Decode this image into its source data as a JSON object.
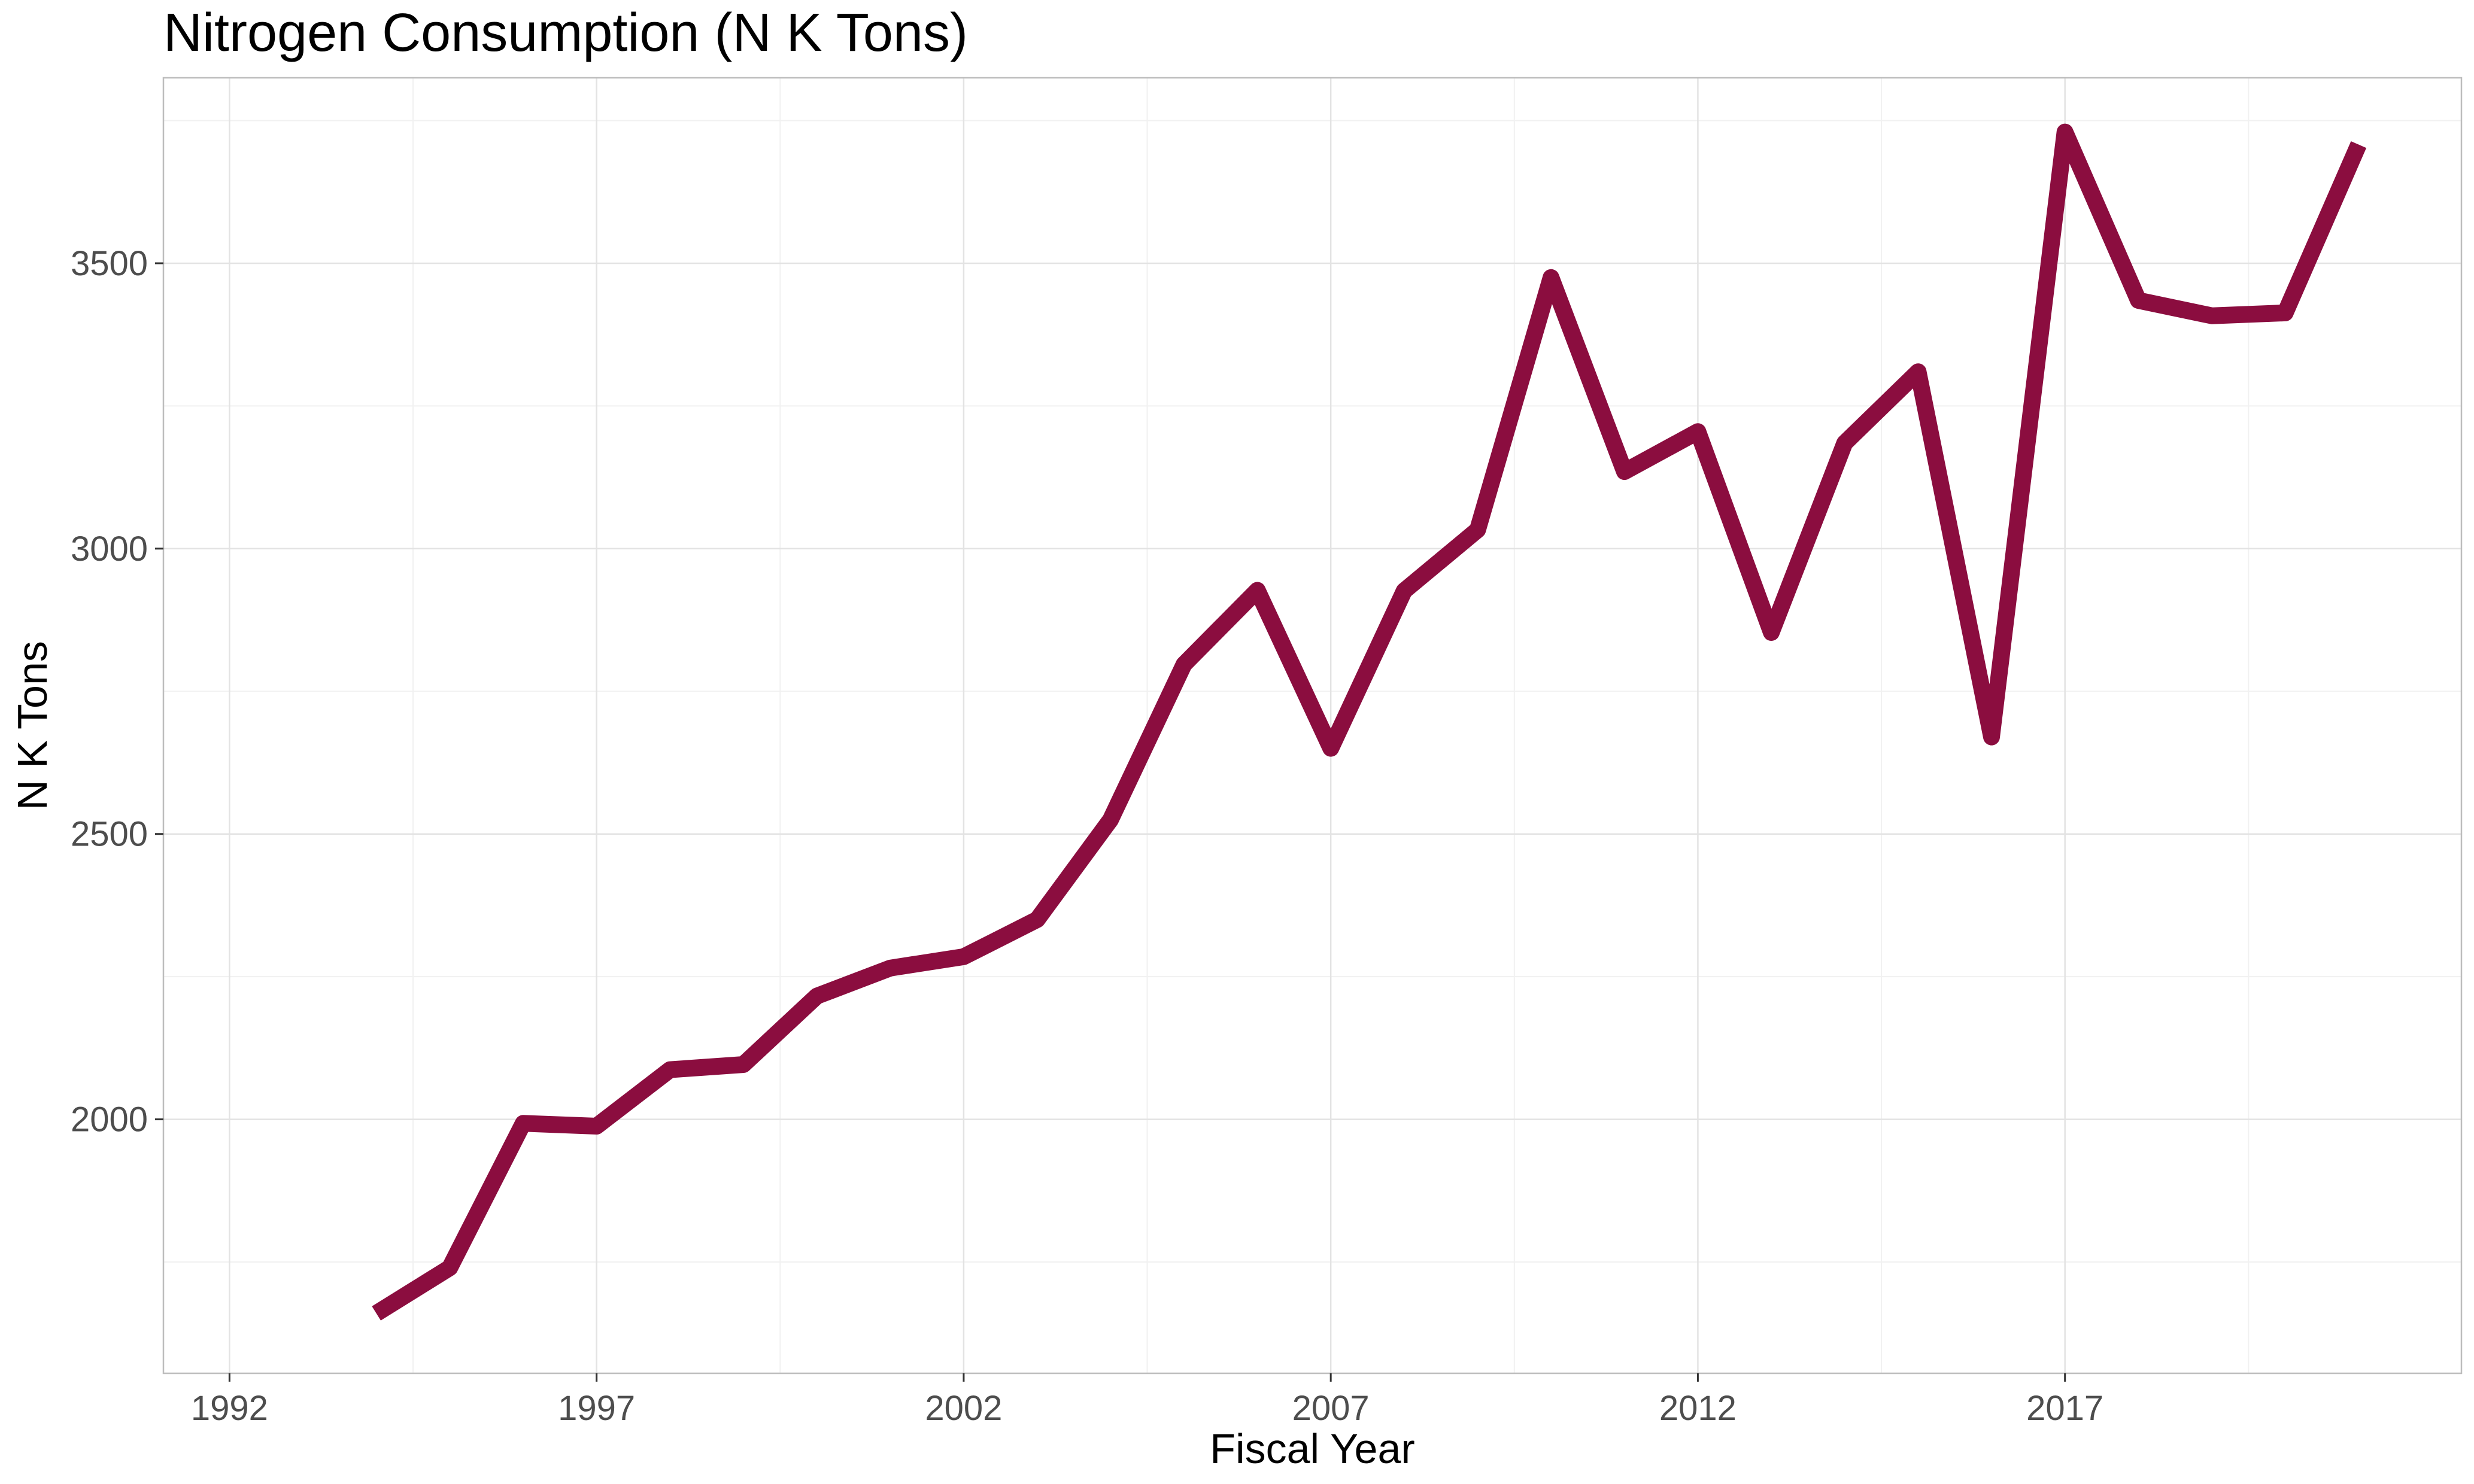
{
  "chart_data": {
    "type": "line",
    "title": "Nitrogen Consumption (N K Tons)",
    "xlabel": "Fiscal Year",
    "ylabel": "N K Tons",
    "x_ticks": [
      1992,
      1997,
      2002,
      2007,
      2012,
      2017
    ],
    "y_ticks": [
      2000,
      2500,
      3000,
      3500
    ],
    "xlim": [
      1991.1,
      2022.4
    ],
    "ylim": [
      1555,
      3825
    ],
    "grid": true,
    "legend": "none",
    "series": [
      {
        "color": "#8b0d3f",
        "x": [
          1994,
          1995,
          1996,
          1997,
          1998,
          1999,
          2000,
          2001,
          2002,
          2003,
          2004,
          2005,
          2006,
          2007,
          2008,
          2009,
          2010,
          2011,
          2012,
          2013,
          2014,
          2015,
          2016,
          2017,
          2018,
          2019,
          2020,
          2021
        ],
        "y": [
          1660,
          1740,
          1993,
          1988,
          2087,
          2096,
          2216,
          2265,
          2285,
          2350,
          2525,
          2797,
          2927,
          2650,
          2926,
          3033,
          3475,
          3135,
          3205,
          2853,
          3185,
          3310,
          2670,
          3730,
          3435,
          3408,
          3413,
          3708
        ]
      }
    ]
  }
}
